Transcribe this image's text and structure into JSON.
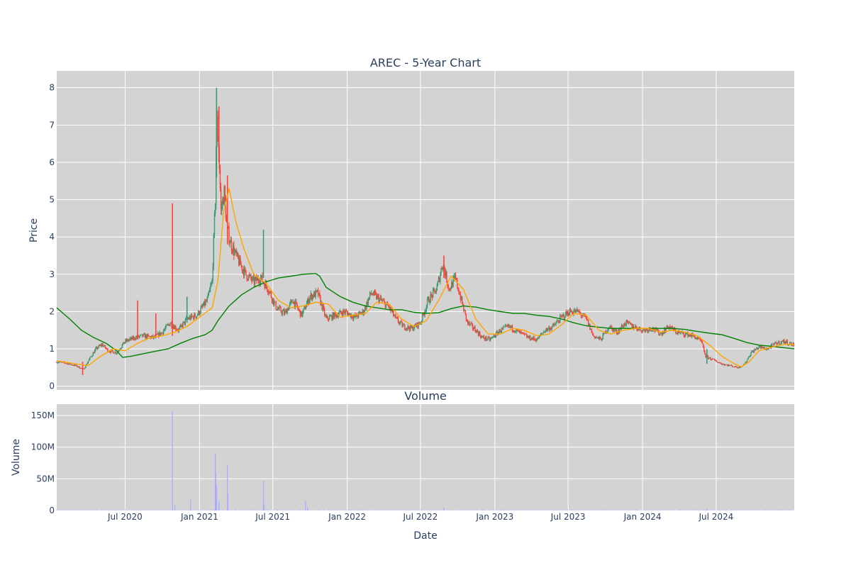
{
  "chart_data": [
    {
      "type": "candlestick",
      "title": "AREC - 5-Year Chart",
      "xlabel": "",
      "ylabel": "Price",
      "ylim": [
        -0.1,
        8.45
      ],
      "y_ticks": [
        0,
        1,
        2,
        3,
        4,
        5,
        6,
        7,
        8
      ],
      "x_ticks": [
        "Jul 2020",
        "Jan 2021",
        "Jul 2021",
        "Jan 2022",
        "Jul 2022",
        "Jan 2023",
        "Jul 2023",
        "Jan 2024",
        "Jul 2024"
      ],
      "x_range": [
        "2020-01-14",
        "2025-01-10"
      ],
      "grid": true,
      "background": "#d3d3d3",
      "colors": {
        "up": "#3d9970",
        "down": "#ff4136",
        "ma_short": "#ffa500",
        "ma_long": "#008000"
      },
      "price_path": [
        [
          "2020-01-14",
          0.65
        ],
        [
          "2020-02-05",
          0.62
        ],
        [
          "2020-03-01",
          0.55
        ],
        [
          "2020-03-20",
          0.45
        ],
        [
          "2020-04-05",
          0.75
        ],
        [
          "2020-04-20",
          1.0
        ],
        [
          "2020-05-05",
          1.12
        ],
        [
          "2020-05-20",
          0.95
        ],
        [
          "2020-06-10",
          0.9
        ],
        [
          "2020-07-01",
          1.2
        ],
        [
          "2020-07-25",
          1.3
        ],
        [
          "2020-08-15",
          1.35
        ],
        [
          "2020-09-10",
          1.3
        ],
        [
          "2020-10-01",
          1.45
        ],
        [
          "2020-10-20",
          1.7
        ],
        [
          "2020-11-10",
          1.5
        ],
        [
          "2020-12-01",
          1.8
        ],
        [
          "2020-12-25",
          1.9
        ],
        [
          "2021-01-20",
          2.3
        ],
        [
          "2021-02-01",
          2.8
        ],
        [
          "2021-02-09",
          5.0
        ],
        [
          "2021-02-12",
          7.2
        ],
        [
          "2021-02-17",
          6.5
        ],
        [
          "2021-02-23",
          4.7
        ],
        [
          "2021-03-03",
          5.2
        ],
        [
          "2021-03-10",
          4.2
        ],
        [
          "2021-03-20",
          3.8
        ],
        [
          "2021-04-05",
          3.4
        ],
        [
          "2021-04-25",
          3.0
        ],
        [
          "2021-05-15",
          2.8
        ],
        [
          "2021-06-01",
          2.9
        ],
        [
          "2021-06-20",
          2.6
        ],
        [
          "2021-07-10",
          2.1
        ],
        [
          "2021-07-30",
          1.95
        ],
        [
          "2021-08-20",
          2.3
        ],
        [
          "2021-09-10",
          1.9
        ],
        [
          "2021-10-01",
          2.4
        ],
        [
          "2021-10-20",
          2.5
        ],
        [
          "2021-11-10",
          1.8
        ],
        [
          "2021-12-01",
          1.9
        ],
        [
          "2021-12-25",
          2.0
        ],
        [
          "2022-01-20",
          1.85
        ],
        [
          "2022-02-10",
          2.0
        ],
        [
          "2022-03-01",
          2.5
        ],
        [
          "2022-03-25",
          2.3
        ],
        [
          "2022-04-15",
          2.1
        ],
        [
          "2022-05-01",
          1.8
        ],
        [
          "2022-05-20",
          1.6
        ],
        [
          "2022-06-10",
          1.55
        ],
        [
          "2022-07-01",
          1.7
        ],
        [
          "2022-07-20",
          2.3
        ],
        [
          "2022-08-10",
          2.6
        ],
        [
          "2022-08-25",
          3.3
        ],
        [
          "2022-09-10",
          2.6
        ],
        [
          "2022-09-25",
          2.9
        ],
        [
          "2022-10-10",
          2.3
        ],
        [
          "2022-10-25",
          1.7
        ],
        [
          "2022-11-15",
          1.5
        ],
        [
          "2022-12-01",
          1.3
        ],
        [
          "2022-12-20",
          1.25
        ],
        [
          "2023-01-15",
          1.5
        ],
        [
          "2023-02-05",
          1.6
        ],
        [
          "2023-03-01",
          1.45
        ],
        [
          "2023-03-25",
          1.3
        ],
        [
          "2023-04-15",
          1.25
        ],
        [
          "2023-05-05",
          1.5
        ],
        [
          "2023-05-25",
          1.6
        ],
        [
          "2023-06-15",
          1.85
        ],
        [
          "2023-07-05",
          2.0
        ],
        [
          "2023-07-25",
          2.0
        ],
        [
          "2023-08-15",
          1.8
        ],
        [
          "2023-09-01",
          1.35
        ],
        [
          "2023-09-20",
          1.25
        ],
        [
          "2023-10-10",
          1.6
        ],
        [
          "2023-10-30",
          1.45
        ],
        [
          "2023-11-20",
          1.7
        ],
        [
          "2023-12-10",
          1.6
        ],
        [
          "2024-01-01",
          1.5
        ],
        [
          "2024-01-25",
          1.55
        ],
        [
          "2024-02-15",
          1.4
        ],
        [
          "2024-03-05",
          1.6
        ],
        [
          "2024-03-25",
          1.45
        ],
        [
          "2024-04-15",
          1.4
        ],
        [
          "2024-05-05",
          1.35
        ],
        [
          "2024-05-25",
          1.2
        ],
        [
          "2024-06-05",
          0.8
        ],
        [
          "2024-06-25",
          0.7
        ],
        [
          "2024-07-15",
          0.6
        ],
        [
          "2024-08-05",
          0.55
        ],
        [
          "2024-08-25",
          0.5
        ],
        [
          "2024-09-10",
          0.6
        ],
        [
          "2024-09-25",
          0.9
        ],
        [
          "2024-10-15",
          1.05
        ],
        [
          "2024-11-05",
          1.0
        ],
        [
          "2024-11-25",
          1.15
        ],
        [
          "2024-12-15",
          1.2
        ],
        [
          "2025-01-10",
          1.1
        ]
      ],
      "spikes": [
        {
          "date": "2020-10-26",
          "low": 1.35,
          "high": 4.9
        },
        {
          "date": "2021-02-12",
          "low": 5.6,
          "high": 8.0
        },
        {
          "date": "2021-02-18",
          "low": 6.0,
          "high": 7.5
        },
        {
          "date": "2021-03-11",
          "low": 3.8,
          "high": 5.65
        },
        {
          "date": "2021-06-08",
          "low": 2.9,
          "high": 4.2
        },
        {
          "date": "2020-08-01",
          "low": 1.25,
          "high": 2.3
        },
        {
          "date": "2020-09-15",
          "low": 1.3,
          "high": 1.95
        },
        {
          "date": "2020-12-01",
          "low": 1.7,
          "high": 2.4
        },
        {
          "date": "2022-08-28",
          "low": 2.9,
          "high": 3.5
        },
        {
          "date": "2020-03-18",
          "low": 0.3,
          "high": 0.65
        },
        {
          "date": "2024-06-08",
          "low": 0.6,
          "high": 1.0
        }
      ],
      "ma_short": [
        [
          "2020-01-14",
          0.68
        ],
        [
          "2020-03-01",
          0.6
        ],
        [
          "2020-04-01",
          0.55
        ],
        [
          "2020-05-01",
          0.8
        ],
        [
          "2020-06-01",
          1.0
        ],
        [
          "2020-07-01",
          0.95
        ],
        [
          "2020-08-01",
          1.15
        ],
        [
          "2020-09-01",
          1.3
        ],
        [
          "2020-10-01",
          1.35
        ],
        [
          "2020-11-01",
          1.45
        ],
        [
          "2020-12-01",
          1.6
        ],
        [
          "2021-01-01",
          1.85
        ],
        [
          "2021-02-01",
          2.1
        ],
        [
          "2021-02-15",
          2.8
        ],
        [
          "2021-03-01",
          4.6
        ],
        [
          "2021-03-15",
          5.3
        ],
        [
          "2021-04-01",
          4.4
        ],
        [
          "2021-04-20",
          3.7
        ],
        [
          "2021-05-15",
          3.0
        ],
        [
          "2021-06-15",
          2.75
        ],
        [
          "2021-07-15",
          2.3
        ],
        [
          "2021-08-15",
          2.1
        ],
        [
          "2021-09-15",
          2.15
        ],
        [
          "2021-10-15",
          2.25
        ],
        [
          "2021-11-15",
          2.2
        ],
        [
          "2021-12-15",
          1.85
        ],
        [
          "2022-01-15",
          1.9
        ],
        [
          "2022-02-15",
          1.95
        ],
        [
          "2022-03-15",
          2.25
        ],
        [
          "2022-04-15",
          2.2
        ],
        [
          "2022-05-15",
          1.8
        ],
        [
          "2022-06-15",
          1.6
        ],
        [
          "2022-07-15",
          1.75
        ],
        [
          "2022-08-15",
          2.3
        ],
        [
          "2022-09-15",
          2.95
        ],
        [
          "2022-10-15",
          2.6
        ],
        [
          "2022-11-15",
          1.8
        ],
        [
          "2022-12-15",
          1.4
        ],
        [
          "2023-01-15",
          1.4
        ],
        [
          "2023-02-15",
          1.55
        ],
        [
          "2023-03-15",
          1.5
        ],
        [
          "2023-04-15",
          1.35
        ],
        [
          "2023-05-15",
          1.4
        ],
        [
          "2023-06-15",
          1.65
        ],
        [
          "2023-07-15",
          1.95
        ],
        [
          "2023-08-15",
          1.9
        ],
        [
          "2023-09-15",
          1.5
        ],
        [
          "2023-10-15",
          1.4
        ],
        [
          "2023-11-15",
          1.5
        ],
        [
          "2023-12-15",
          1.55
        ],
        [
          "2024-01-15",
          1.55
        ],
        [
          "2024-02-15",
          1.45
        ],
        [
          "2024-03-15",
          1.5
        ],
        [
          "2024-04-15",
          1.45
        ],
        [
          "2024-05-15",
          1.35
        ],
        [
          "2024-06-15",
          1.1
        ],
        [
          "2024-07-15",
          0.8
        ],
        [
          "2024-08-15",
          0.6
        ],
        [
          "2024-09-01",
          0.52
        ],
        [
          "2024-09-20",
          0.65
        ],
        [
          "2024-10-15",
          0.95
        ],
        [
          "2024-11-15",
          1.05
        ],
        [
          "2024-12-15",
          1.12
        ],
        [
          "2025-01-10",
          1.12
        ]
      ],
      "ma_long": [
        [
          "2020-01-14",
          2.1
        ],
        [
          "2020-02-15",
          1.8
        ],
        [
          "2020-03-15",
          1.5
        ],
        [
          "2020-04-15",
          1.3
        ],
        [
          "2020-05-15",
          1.15
        ],
        [
          "2020-06-10",
          0.95
        ],
        [
          "2020-06-25",
          0.77
        ],
        [
          "2020-07-15",
          0.8
        ],
        [
          "2020-08-15",
          0.87
        ],
        [
          "2020-09-15",
          0.94
        ],
        [
          "2020-10-15",
          1.0
        ],
        [
          "2020-11-15",
          1.15
        ],
        [
          "2020-12-15",
          1.28
        ],
        [
          "2021-01-15",
          1.38
        ],
        [
          "2021-02-01",
          1.5
        ],
        [
          "2021-02-15",
          1.75
        ],
        [
          "2021-03-01",
          1.95
        ],
        [
          "2021-03-15",
          2.15
        ],
        [
          "2021-04-15",
          2.45
        ],
        [
          "2021-05-15",
          2.65
        ],
        [
          "2021-06-15",
          2.8
        ],
        [
          "2021-07-15",
          2.9
        ],
        [
          "2021-08-15",
          2.95
        ],
        [
          "2021-09-15",
          3.0
        ],
        [
          "2021-10-15",
          3.02
        ],
        [
          "2021-10-25",
          2.95
        ],
        [
          "2021-11-10",
          2.65
        ],
        [
          "2021-12-15",
          2.4
        ],
        [
          "2022-01-15",
          2.25
        ],
        [
          "2022-02-15",
          2.15
        ],
        [
          "2022-03-15",
          2.1
        ],
        [
          "2022-04-15",
          2.05
        ],
        [
          "2022-05-15",
          2.05
        ],
        [
          "2022-06-15",
          1.98
        ],
        [
          "2022-07-15",
          1.95
        ],
        [
          "2022-08-15",
          1.97
        ],
        [
          "2022-09-15",
          2.08
        ],
        [
          "2022-10-15",
          2.15
        ],
        [
          "2022-11-15",
          2.12
        ],
        [
          "2022-12-15",
          2.05
        ],
        [
          "2023-01-15",
          2.0
        ],
        [
          "2023-02-15",
          1.95
        ],
        [
          "2023-03-15",
          1.95
        ],
        [
          "2023-04-15",
          1.9
        ],
        [
          "2023-05-15",
          1.87
        ],
        [
          "2023-06-15",
          1.8
        ],
        [
          "2023-07-15",
          1.7
        ],
        [
          "2023-08-15",
          1.62
        ],
        [
          "2023-09-15",
          1.58
        ],
        [
          "2023-10-15",
          1.55
        ],
        [
          "2023-11-15",
          1.55
        ],
        [
          "2023-12-15",
          1.55
        ],
        [
          "2024-01-15",
          1.55
        ],
        [
          "2024-02-15",
          1.55
        ],
        [
          "2024-03-15",
          1.55
        ],
        [
          "2024-04-15",
          1.52
        ],
        [
          "2024-05-15",
          1.47
        ],
        [
          "2024-06-15",
          1.42
        ],
        [
          "2024-07-15",
          1.38
        ],
        [
          "2024-08-15",
          1.28
        ],
        [
          "2024-09-15",
          1.17
        ],
        [
          "2024-10-15",
          1.1
        ],
        [
          "2024-11-15",
          1.07
        ],
        [
          "2024-12-15",
          1.03
        ],
        [
          "2025-01-10",
          1.0
        ]
      ]
    },
    {
      "type": "bar",
      "title": "Volume",
      "xlabel": "Date",
      "ylabel": "Volume",
      "ylim": [
        0,
        168000000
      ],
      "y_ticks": [
        0,
        50000000,
        100000000,
        150000000
      ],
      "y_tick_labels": [
        "0",
        "50M",
        "100M",
        "150M"
      ],
      "x_ticks": [
        "Jul 2020",
        "Jan 2021",
        "Jul 2021",
        "Jan 2022",
        "Jul 2022",
        "Jan 2023",
        "Jul 2023",
        "Jan 2024",
        "Jul 2024"
      ],
      "bar_color": "#aaaaff",
      "baseline_volume": 700000,
      "spikes": [
        {
          "date": "2020-10-26",
          "value": 158000000
        },
        {
          "date": "2020-11-01",
          "value": 8000000
        },
        {
          "date": "2020-12-10",
          "value": 17000000
        },
        {
          "date": "2021-02-09",
          "value": 90000000
        },
        {
          "date": "2021-02-10",
          "value": 60000000
        },
        {
          "date": "2021-02-12",
          "value": 40000000
        },
        {
          "date": "2021-02-18",
          "value": 15000000
        },
        {
          "date": "2021-03-11",
          "value": 72000000
        },
        {
          "date": "2021-03-12",
          "value": 25000000
        },
        {
          "date": "2021-06-08",
          "value": 47000000
        },
        {
          "date": "2021-06-09",
          "value": 10000000
        },
        {
          "date": "2021-09-20",
          "value": 15000000
        },
        {
          "date": "2021-09-25",
          "value": 5000000
        },
        {
          "date": "2022-08-28",
          "value": 4000000
        },
        {
          "date": "2024-06-08",
          "value": 3000000
        }
      ]
    }
  ]
}
